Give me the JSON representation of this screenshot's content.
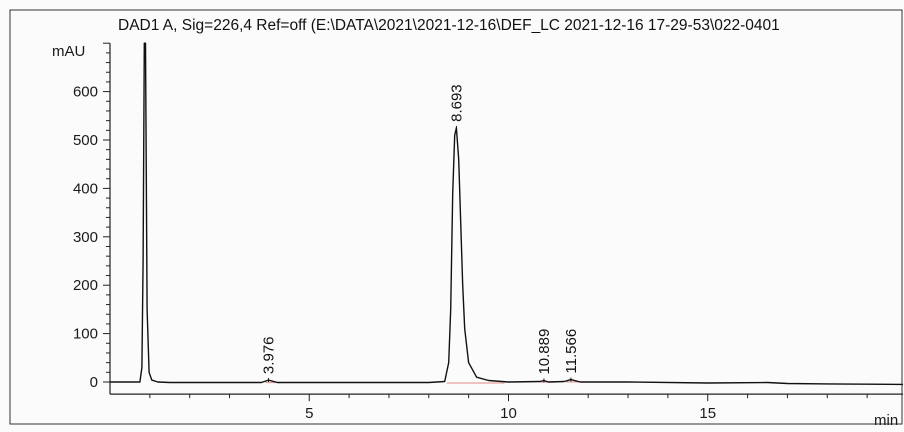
{
  "chart_data": {
    "type": "line",
    "title": "DAD1 A, Sig=226,4 Ref=off (E:\\DATA\\2021\\2021-12-16\\DEF_LC 2021-12-16 17-29-53\\022-0401",
    "ylabel": "mAU",
    "xlabel": "min",
    "xlim": [
      0,
      19.9
    ],
    "ylim": [
      -25,
      700
    ],
    "x_ticks": [
      5,
      10,
      15
    ],
    "y_ticks": [
      0,
      100,
      200,
      300,
      400,
      500,
      600
    ],
    "grid": false,
    "colors": {
      "trace": "#111111",
      "baseline": "#e8a0a0",
      "axis": "#222222"
    },
    "peaks": [
      {
        "rt": 3.976,
        "label": "3.976",
        "height": 4
      },
      {
        "rt": 8.693,
        "label": "8.693",
        "height": 525
      },
      {
        "rt": 10.889,
        "label": "10.889",
        "height": 3
      },
      {
        "rt": 11.566,
        "label": "11.566",
        "height": 5
      }
    ],
    "trace": {
      "x": [
        0,
        0.5,
        0.75,
        0.8,
        0.83,
        0.86,
        0.89,
        0.93,
        0.98,
        1.05,
        1.2,
        1.5,
        2.0,
        3.0,
        3.8,
        3.976,
        4.2,
        5.0,
        6.0,
        7.0,
        8.0,
        8.4,
        8.5,
        8.55,
        8.6,
        8.65,
        8.693,
        8.75,
        8.8,
        8.85,
        8.9,
        9.0,
        9.2,
        9.5,
        10.0,
        10.8,
        10.889,
        11.0,
        11.4,
        11.566,
        11.8,
        13.0,
        15.0,
        16.5,
        17.0,
        18.0,
        19.9
      ],
      "y": [
        0,
        0,
        0,
        30,
        250,
        700,
        700,
        150,
        20,
        4,
        0,
        -1,
        -1,
        -1,
        -1,
        4,
        -1,
        -1,
        -1,
        -1,
        -1,
        1,
        40,
        150,
        390,
        510,
        525,
        460,
        330,
        200,
        110,
        40,
        10,
        3,
        0,
        1,
        3,
        0,
        1,
        5,
        0,
        0,
        -2,
        -1,
        -3,
        -4,
        -5
      ]
    }
  }
}
